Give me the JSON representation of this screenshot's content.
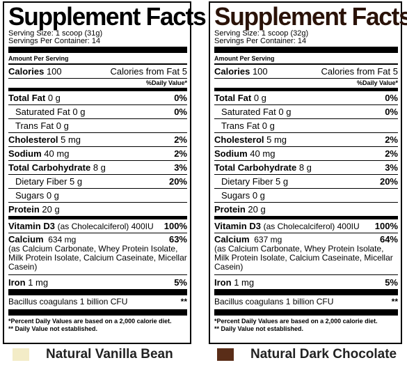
{
  "left": {
    "title": "Supplement Facts",
    "serving_size": "Serving Size: 1 scoop (31g)",
    "servings_per_container": "Servings Per Container: 14",
    "amount_per_serving": "Amount Per Serving",
    "calories_label": "Calories",
    "calories_value": "100",
    "calories_fat": "Calories from Fat 5",
    "dv_header": "%Daily Value*",
    "total_fat": {
      "label": "Total Fat",
      "amount": "0 g",
      "dv": "0%"
    },
    "sat_fat": {
      "label": "Saturated Fat",
      "amount": "0 g",
      "dv": "0%"
    },
    "trans_fat": {
      "label": "Trans Fat",
      "amount": "0 g"
    },
    "cholesterol": {
      "label": "Cholesterol",
      "amount": "5 mg",
      "dv": "2%"
    },
    "sodium": {
      "label": "Sodium",
      "amount": "40 mg",
      "dv": "2%"
    },
    "carbs": {
      "label": "Total Carbohydrate",
      "amount": "8 g",
      "dv": "3%"
    },
    "fiber": {
      "label": "Dietary Fiber",
      "amount": "5 g",
      "dv": "20%"
    },
    "sugars": {
      "label": "Sugars",
      "amount": "0 g"
    },
    "protein": {
      "label": "Protein",
      "amount": "20 g"
    },
    "vitd": {
      "label": "Vitamin D3",
      "amount": "(as Cholecalciferol) 400IU",
      "dv": "100%"
    },
    "calcium": {
      "label": "Calcium",
      "amount": "634 mg",
      "dv": "63%",
      "desc": "(as Calcium Carbonate, Whey Protein Isolate, Milk Protein Isolate, Calcium Caseinate, Micellar Casein)"
    },
    "iron": {
      "label": "Iron",
      "amount": "1 mg",
      "dv": "5%"
    },
    "bacillus": {
      "label": "Bacillus coagulans 1 billion CFU",
      "dv": "**"
    },
    "foot1": "*Percent Daily Values are based on a 2,000 calorie diet.",
    "foot2": "** Daily Value not established."
  },
  "right": {
    "title": "Supplement Facts",
    "serving_size": "Serving Size: 1 scoop (32g)",
    "servings_per_container": "Servings Per Container: 14",
    "amount_per_serving": "Amount Per Serving",
    "calories_label": "Calories",
    "calories_value": "100",
    "calories_fat": "Calories from Fat 5",
    "dv_header": "%Daily Value*",
    "total_fat": {
      "label": "Total Fat",
      "amount": "0 g",
      "dv": "0%"
    },
    "sat_fat": {
      "label": "Saturated Fat",
      "amount": "0 g",
      "dv": "0%"
    },
    "trans_fat": {
      "label": "Trans Fat",
      "amount": "0 g"
    },
    "cholesterol": {
      "label": "Cholesterol",
      "amount": "5 mg",
      "dv": "2%"
    },
    "sodium": {
      "label": "Sodium",
      "amount": "40 mg",
      "dv": "2%"
    },
    "carbs": {
      "label": "Total Carbohydrate",
      "amount": "8 g",
      "dv": "3%"
    },
    "fiber": {
      "label": "Dietary Fiber",
      "amount": "5 g",
      "dv": "20%"
    },
    "sugars": {
      "label": "Sugars",
      "amount": "0 g"
    },
    "protein": {
      "label": "Protein",
      "amount": "20 g"
    },
    "vitd": {
      "label": "Vitamin D3",
      "amount": "(as Cholecalciferol) 400IU",
      "dv": "100%"
    },
    "calcium": {
      "label": "Calcium",
      "amount": "637 mg",
      "dv": "64%",
      "desc": "(as Calcium Carbonate, Whey Protein Isolate, Milk Protein Isolate, Calcium Caseinate, Micellar Casein)"
    },
    "iron": {
      "label": "Iron",
      "amount": "1 mg",
      "dv": "5%"
    },
    "bacillus": {
      "label": "Bacillus coagulans 1 billion CFU",
      "dv": "**"
    },
    "foot1": "*Percent Daily Values are based on a 2,000 calorie diet.",
    "foot2": "** Daily Value not established."
  },
  "flavors": [
    {
      "name": "Natural Vanilla Bean",
      "color": "#f3ecc7"
    },
    {
      "name": "Natural Dark Chocolate",
      "color": "#5a2d18"
    }
  ]
}
